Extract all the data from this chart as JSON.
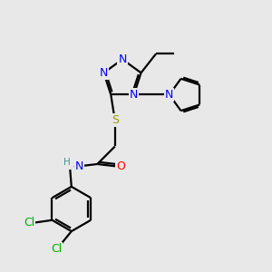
{
  "background_color": "#e8e8e8",
  "bond_color": "#000000",
  "atom_colors": {
    "N": "#0000ff",
    "O": "#ff0000",
    "S": "#999900",
    "Cl": "#00aa00",
    "C": "#000000",
    "H": "#4a9090"
  },
  "figsize": [
    3.0,
    3.0
  ],
  "dpi": 100
}
